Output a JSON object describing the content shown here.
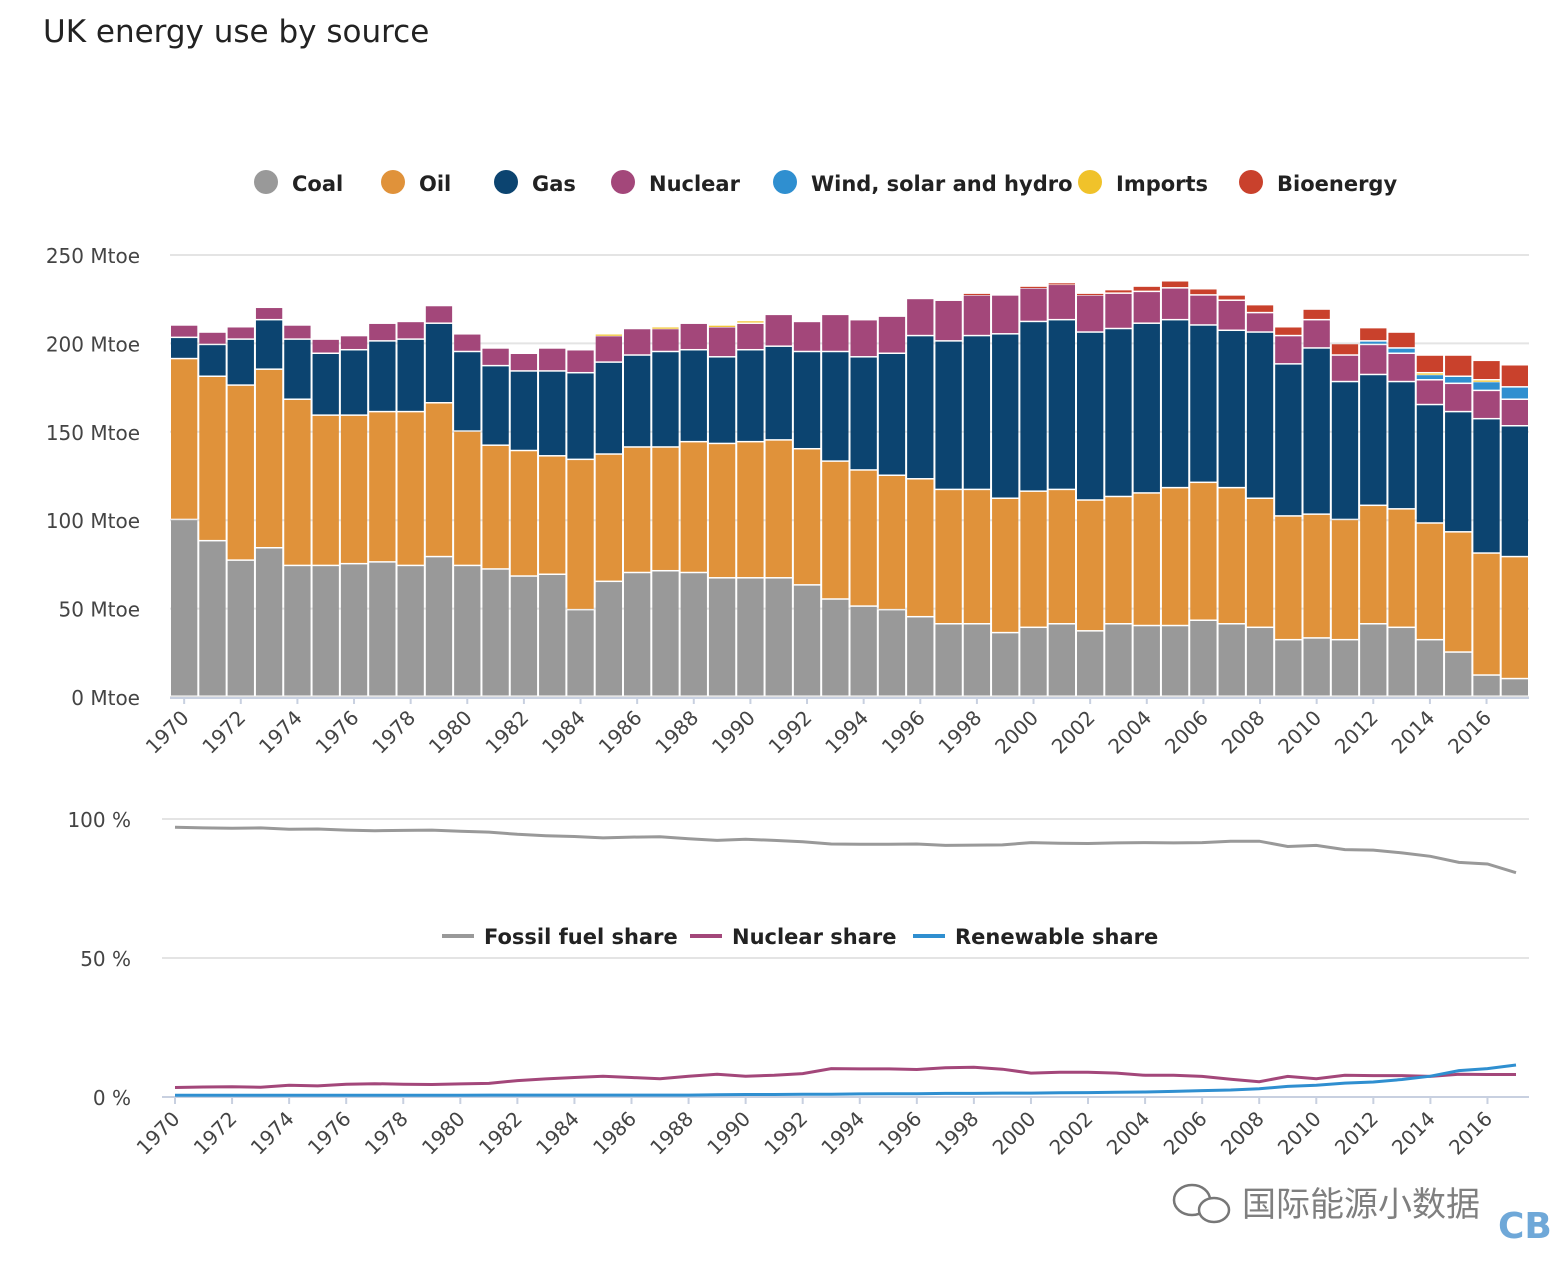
{
  "title": "UK energy use by source",
  "watermark": {
    "text": "国际能源小数据",
    "logo": "CB",
    "icon": "wechat-icon"
  },
  "chart_data": [
    {
      "type": "bar",
      "stacked": true,
      "ylim": [
        0,
        250
      ],
      "yticks": [
        "0 Mtoe",
        "50 Mtoe",
        "100 Mtoe",
        "150 Mtoe",
        "200 Mtoe",
        "250 Mtoe"
      ],
      "ytick_values": [
        0,
        50,
        100,
        150,
        200,
        250
      ],
      "grid": true,
      "legend_placement": "top",
      "categories": [
        1970,
        1971,
        1972,
        1973,
        1974,
        1975,
        1976,
        1977,
        1978,
        1979,
        1980,
        1981,
        1982,
        1983,
        1984,
        1985,
        1986,
        1987,
        1988,
        1989,
        1990,
        1991,
        1992,
        1993,
        1994,
        1995,
        1996,
        1997,
        1998,
        1999,
        2000,
        2001,
        2002,
        2003,
        2004,
        2005,
        2006,
        2007,
        2008,
        2009,
        2010,
        2011,
        2012,
        2013,
        2014,
        2015,
        2016,
        2017
      ],
      "xtick_labels": [
        "1970",
        "1972",
        "1974",
        "1976",
        "1978",
        "1980",
        "1982",
        "1984",
        "1986",
        "1988",
        "1990",
        "1992",
        "1994",
        "1996",
        "1998",
        "2000",
        "2002",
        "2004",
        "2006",
        "2008",
        "2010",
        "2012",
        "2014",
        "2016"
      ],
      "series": [
        {
          "name": "Coal",
          "color": "#999999",
          "values": [
            100,
            88,
            77,
            84,
            74,
            74,
            75,
            76,
            74,
            79,
            74,
            72,
            68,
            69,
            49,
            65,
            70,
            71,
            70,
            67,
            67,
            67,
            63,
            55,
            51,
            49,
            45,
            41,
            41,
            36,
            39,
            41,
            37,
            41,
            40,
            40,
            43,
            41,
            39,
            32,
            33,
            32,
            41,
            39,
            32,
            25,
            12,
            10
          ]
        },
        {
          "name": "Oil",
          "color": "#e0923a",
          "values": [
            91,
            93,
            99,
            101,
            94,
            85,
            84,
            85,
            87,
            87,
            76,
            70,
            71,
            67,
            85,
            72,
            71,
            70,
            74,
            76,
            77,
            78,
            77,
            78,
            77,
            76,
            78,
            76,
            76,
            76,
            77,
            76,
            74,
            72,
            75,
            78,
            78,
            77,
            73,
            70,
            70,
            68,
            67,
            67,
            66,
            68,
            69,
            69
          ]
        },
        {
          "name": "Gas",
          "color": "#0c4470",
          "values": [
            12,
            18,
            26,
            28,
            34,
            35,
            37,
            40,
            41,
            45,
            45,
            45,
            45,
            48,
            49,
            52,
            52,
            54,
            52,
            49,
            52,
            53,
            55,
            62,
            64,
            69,
            81,
            84,
            87,
            93,
            96,
            96,
            95,
            95,
            96,
            95,
            89,
            89,
            94,
            86,
            94,
            78,
            74,
            72,
            67,
            68,
            76,
            74
          ]
        },
        {
          "name": "Nuclear",
          "color": "#a3477a",
          "values": [
            7,
            7,
            7,
            7,
            8,
            8,
            8,
            10,
            10,
            10,
            10,
            10,
            10,
            13,
            13,
            15,
            15,
            13,
            15,
            17,
            15,
            18,
            17,
            21,
            21,
            21,
            21,
            23,
            23,
            22,
            19,
            20,
            21,
            20,
            18,
            18,
            17,
            17,
            11,
            16,
            16,
            15,
            17,
            16,
            14,
            16,
            16,
            15
          ]
        },
        {
          "name": "Wind, solar and hydro",
          "color": "#2f8fd0",
          "values": [
            0,
            0,
            0,
            0,
            0,
            0,
            0,
            0,
            0,
            0,
            0,
            0,
            0,
            0,
            0,
            0,
            0,
            0,
            0,
            0,
            0,
            0,
            0,
            0,
            0,
            0,
            0,
            0,
            0,
            0,
            0,
            0,
            0,
            0,
            0,
            0,
            0,
            0,
            0,
            0,
            0,
            0,
            2,
            3,
            3,
            4,
            5,
            7
          ]
        },
        {
          "name": "Imports",
          "color": "#f0c22a",
          "values": [
            0,
            0,
            0,
            0,
            0,
            0,
            0,
            0,
            0,
            0,
            0,
            0,
            0,
            0,
            0,
            1,
            0,
            1,
            0,
            1,
            1.5,
            0,
            0,
            0,
            0,
            0,
            0,
            0,
            0,
            0,
            0,
            0,
            0,
            0,
            0,
            0,
            0,
            0,
            0,
            0,
            0,
            0,
            0,
            0,
            1,
            0,
            1,
            0
          ]
        },
        {
          "name": "Bioenergy",
          "color": "#c9412c",
          "values": [
            0,
            0,
            0,
            0,
            0,
            0,
            0,
            0,
            0,
            0,
            0,
            0,
            0,
            0,
            0,
            0,
            0,
            0,
            1,
            0,
            1,
            1,
            1,
            2,
            3,
            4,
            3.5,
            3,
            4.5,
            5,
            6,
            6.5,
            7.5,
            9,
            10,
            12,
            11,
            12.5,
            0,
            0,
            0,
            0,
            0,
            0,
            0,
            0,
            0,
            0
          ]
        }
      ]
    },
    {
      "type": "line",
      "ylim": [
        0,
        100
      ],
      "yticks": [
        "0 %",
        "50 %",
        "100 %"
      ],
      "ytick_values": [
        0,
        50,
        100
      ],
      "grid": true,
      "legend_placement": "center",
      "x": [
        1970,
        1971,
        1972,
        1973,
        1974,
        1975,
        1976,
        1977,
        1978,
        1979,
        1980,
        1981,
        1982,
        1983,
        1984,
        1985,
        1986,
        1987,
        1988,
        1989,
        1990,
        1991,
        1992,
        1993,
        1994,
        1995,
        1996,
        1997,
        1998,
        1999,
        2000,
        2001,
        2002,
        2003,
        2004,
        2005,
        2006,
        2007,
        2008,
        2009,
        2010,
        2011,
        2012,
        2013,
        2014,
        2015,
        2016,
        2017
      ],
      "xtick_labels": [
        "1970",
        "1972",
        "1974",
        "1976",
        "1978",
        "1980",
        "1982",
        "1984",
        "1986",
        "1988",
        "1990",
        "1992",
        "1994",
        "1996",
        "1998",
        "2000",
        "2002",
        "2004",
        "2006",
        "2008",
        "2010",
        "2012",
        "2014",
        "2016"
      ],
      "series": [
        {
          "name": "Fossil fuel share",
          "color": "#999999",
          "values": [
            97,
            96.8,
            96.7,
            96.8,
            96.3,
            96.4,
            96,
            95.8,
            95.9,
            96,
            95.6,
            95.3,
            94.5,
            94,
            93.7,
            93.2,
            93.5,
            93.6,
            92.9,
            92.3,
            92.7,
            92.3,
            91.8,
            91,
            90.9,
            90.9,
            91,
            90.5,
            90.6,
            90.7,
            91.5,
            91.3,
            91.2,
            91.4,
            91.5,
            91.4,
            91.5,
            92,
            92,
            90.1,
            90.5,
            89,
            88.8,
            87.8,
            86.6,
            84.4,
            83.8,
            80.7
          ]
        },
        {
          "name": "Nuclear share",
          "color": "#a3477a",
          "values": [
            3.4,
            3.6,
            3.7,
            3.5,
            4.2,
            4,
            4.6,
            4.8,
            4.6,
            4.5,
            4.7,
            4.9,
            5.9,
            6.5,
            7,
            7.5,
            7,
            6.6,
            7.5,
            8.2,
            7.5,
            7.8,
            8.4,
            10.2,
            10.1,
            10.1,
            9.9,
            10.5,
            10.7,
            10,
            8.6,
            8.9,
            8.9,
            8.6,
            7.8,
            7.8,
            7.4,
            6.4,
            5.5,
            7.4,
            6.6,
            7.8,
            7.7,
            7.7,
            7.4,
            8.2,
            8.1,
            8.1
          ]
        },
        {
          "name": "Renewable share",
          "color": "#2f8fd0",
          "values": [
            0.6,
            0.6,
            0.6,
            0.6,
            0.6,
            0.6,
            0.6,
            0.6,
            0.6,
            0.6,
            0.6,
            0.7,
            0.7,
            0.7,
            0.7,
            0.7,
            0.7,
            0.7,
            0.7,
            0.8,
            0.9,
            0.9,
            1,
            1,
            1.1,
            1.2,
            1.2,
            1.3,
            1.3,
            1.4,
            1.4,
            1.5,
            1.6,
            1.7,
            1.8,
            2,
            2.3,
            2.5,
            3,
            3.8,
            4.2,
            5,
            5.4,
            6.3,
            7.5,
            9.5,
            10.2,
            11.5
          ]
        }
      ]
    }
  ]
}
